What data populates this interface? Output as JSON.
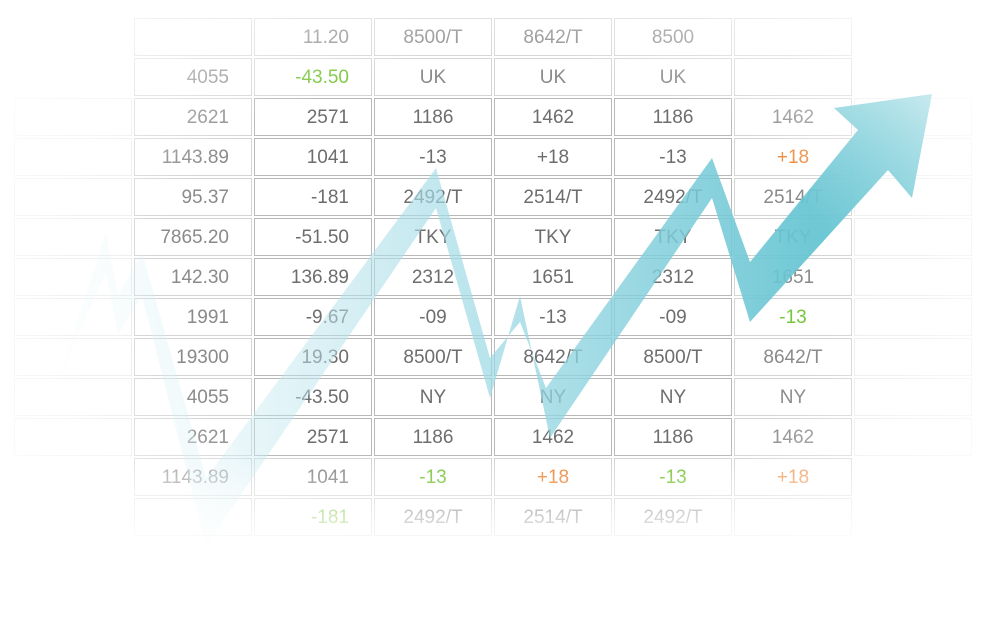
{
  "columns": [
    {
      "key": "c1",
      "align": "right"
    },
    {
      "key": "c2",
      "align": "right"
    },
    {
      "key": "c3",
      "align": "center"
    },
    {
      "key": "c4",
      "align": "center"
    },
    {
      "key": "c5",
      "align": "center"
    },
    {
      "key": "c6",
      "align": "center"
    }
  ],
  "rows": [
    [
      {
        "t": ""
      },
      {
        "t": "11.20"
      },
      {
        "t": "8500/T"
      },
      {
        "t": "8642/T"
      },
      {
        "t": "8500"
      },
      {
        "t": ""
      }
    ],
    [
      {
        "t": "4055"
      },
      {
        "t": "-43.50",
        "s": "pos"
      },
      {
        "t": "UK"
      },
      {
        "t": "UK"
      },
      {
        "t": "UK"
      },
      {
        "t": ""
      }
    ],
    [
      {
        "t": "2621"
      },
      {
        "t": "2571"
      },
      {
        "t": "1186"
      },
      {
        "t": "1462"
      },
      {
        "t": "1186"
      },
      {
        "t": "1462"
      }
    ],
    [
      {
        "t": "1143.89"
      },
      {
        "t": "1041"
      },
      {
        "t": "-13",
        "s": "pos"
      },
      {
        "t": "+18",
        "s": "neg"
      },
      {
        "t": "-13",
        "s": "pos"
      },
      {
        "t": "+18",
        "s": "neg"
      }
    ],
    [
      {
        "t": "95.37"
      },
      {
        "t": "-181",
        "s": "pos"
      },
      {
        "t": "2492/T"
      },
      {
        "t": "2514/T"
      },
      {
        "t": "2492/T"
      },
      {
        "t": "2514/T"
      }
    ],
    [
      {
        "t": "7865.20"
      },
      {
        "t": "-51.50",
        "s": "pos"
      },
      {
        "t": "TKY"
      },
      {
        "t": "TKY"
      },
      {
        "t": "TKY"
      },
      {
        "t": "TKY"
      }
    ],
    [
      {
        "t": "142.30"
      },
      {
        "t": "136.89"
      },
      {
        "t": "2312"
      },
      {
        "t": "1651"
      },
      {
        "t": "2312"
      },
      {
        "t": "1651"
      }
    ],
    [
      {
        "t": "1991"
      },
      {
        "t": "-9.67",
        "s": "pos"
      },
      {
        "t": "-09",
        "s": "pos"
      },
      {
        "t": "-13",
        "s": "pos"
      },
      {
        "t": "-09",
        "s": "pos"
      },
      {
        "t": "-13",
        "s": "pos"
      }
    ],
    [
      {
        "t": "19300"
      },
      {
        "t": "19.30"
      },
      {
        "t": "8500/T"
      },
      {
        "t": "8642/T"
      },
      {
        "t": "8500/T"
      },
      {
        "t": "8642/T"
      }
    ],
    [
      {
        "t": "4055"
      },
      {
        "t": "-43.50",
        "s": "pos"
      },
      {
        "t": "NY"
      },
      {
        "t": "NY"
      },
      {
        "t": "NY"
      },
      {
        "t": "NY"
      }
    ],
    [
      {
        "t": "2621"
      },
      {
        "t": "2571"
      },
      {
        "t": "1186"
      },
      {
        "t": "1462"
      },
      {
        "t": "1186"
      },
      {
        "t": "1462"
      }
    ],
    [
      {
        "t": "1143.89"
      },
      {
        "t": "1041"
      },
      {
        "t": "-13",
        "s": "pos"
      },
      {
        "t": "+18",
        "s": "neg"
      },
      {
        "t": "-13",
        "s": "pos"
      },
      {
        "t": "+18",
        "s": "neg"
      }
    ],
    [
      {
        "t": ""
      },
      {
        "t": "-181",
        "s": "pos"
      },
      {
        "t": "2492/T"
      },
      {
        "t": "2514/T"
      },
      {
        "t": "2492/T"
      },
      {
        "t": ""
      }
    ]
  ],
  "arrow_colors": {
    "start": "#e6f6f9",
    "mid": "#a3dbe6",
    "end": "#4fbccb"
  }
}
